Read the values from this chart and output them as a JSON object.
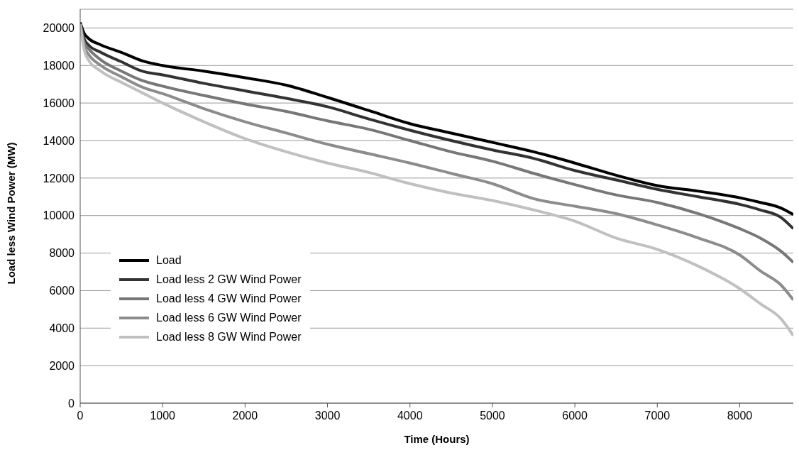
{
  "chart_data": {
    "type": "line",
    "xlabel": "Time (Hours)",
    "ylabel": "Load less Wind Power (MW)",
    "x": [
      0,
      50,
      100,
      250,
      500,
      750,
      1000,
      1500,
      2000,
      2500,
      3000,
      3500,
      4000,
      4500,
      5000,
      5500,
      6000,
      6500,
      7000,
      7500,
      8000,
      8250,
      8500,
      8650
    ],
    "series": [
      {
        "name": "Load",
        "color": "#000000",
        "values": [
          20300,
          19700,
          19450,
          19100,
          18700,
          18250,
          18000,
          17700,
          17350,
          16950,
          16300,
          15600,
          14900,
          14400,
          13900,
          13400,
          12800,
          12150,
          11600,
          11300,
          10950,
          10700,
          10400,
          10050
        ]
      },
      {
        "name": "Load less 2 GW Wind Power",
        "color": "#333333",
        "values": [
          20300,
          19400,
          19100,
          18700,
          18200,
          17700,
          17500,
          17050,
          16650,
          16250,
          15800,
          15150,
          14550,
          14000,
          13500,
          13050,
          12400,
          11900,
          11400,
          11000,
          10600,
          10300,
          9900,
          9300
        ]
      },
      {
        "name": "Load less 4 GW Wind Power",
        "color": "#777777",
        "values": [
          20200,
          19200,
          18900,
          18300,
          17700,
          17200,
          16900,
          16400,
          15950,
          15550,
          15050,
          14600,
          14000,
          13400,
          12900,
          12250,
          11650,
          11100,
          10700,
          10100,
          9300,
          8800,
          8100,
          7500
        ]
      },
      {
        "name": "Load less 6 GW Wind Power",
        "color": "#8c8c8c",
        "values": [
          20200,
          19000,
          18600,
          18000,
          17400,
          16850,
          16500,
          15700,
          15000,
          14400,
          13800,
          13300,
          12800,
          12250,
          11700,
          10900,
          10500,
          10100,
          9500,
          8800,
          7900,
          7050,
          6300,
          5500
        ]
      },
      {
        "name": "Load less 8 GW Wind Power",
        "color": "#c0c0c0",
        "values": [
          20200,
          18800,
          18300,
          17700,
          17100,
          16550,
          16000,
          15000,
          14100,
          13400,
          12800,
          12300,
          11700,
          11200,
          10800,
          10300,
          9700,
          8800,
          8200,
          7300,
          6100,
          5300,
          4500,
          3600
        ]
      }
    ],
    "xlim": [
      0,
      8650
    ],
    "xticks": [
      0,
      1000,
      2000,
      3000,
      4000,
      5000,
      6000,
      7000,
      8000
    ],
    "ylim": [
      0,
      21000
    ],
    "yticks": [
      0,
      2000,
      4000,
      6000,
      8000,
      10000,
      12000,
      14000,
      16000,
      18000,
      20000
    ],
    "grid": "y",
    "legend": "bottom left",
    "marker": "none",
    "line_style": "solid"
  }
}
